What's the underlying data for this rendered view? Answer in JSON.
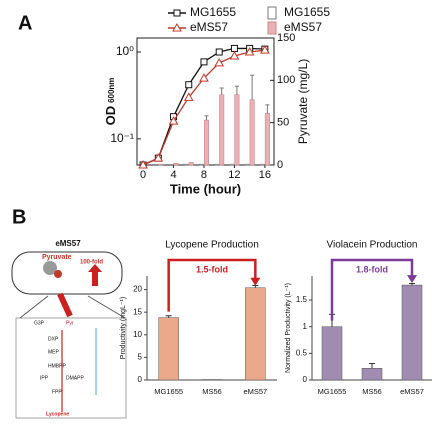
{
  "panel_labels": [
    "A",
    "B"
  ],
  "chart_data": [
    {
      "type": "line",
      "xlabel": "Time (hour)",
      "ylabel": "OD",
      "ylabel_subscript": "600nm",
      "y2label": "Pyruvate (mg/L)",
      "x": [
        0,
        2,
        4,
        6,
        8,
        10,
        12,
        14,
        16
      ],
      "xlim": [
        -0.8,
        17.2
      ],
      "xticks": [
        0,
        4,
        8,
        12,
        16
      ],
      "ylim": [
        0.05,
        1.45
      ],
      "log_y": true,
      "yticks": [
        {
          "value": 0.1,
          "label": "10⁻¹"
        },
        {
          "value": 1,
          "label": "10⁰"
        }
      ],
      "y2lim": [
        0,
        150
      ],
      "y2ticks": [
        0,
        50,
        100,
        150
      ],
      "series": [
        {
          "name": "MG1655",
          "kind": "line",
          "marker": "square",
          "color": "#111111",
          "values": [
            0.05,
            0.06,
            0.18,
            0.42,
            0.77,
            1.0,
            1.1,
            1.1,
            1.08
          ]
        },
        {
          "name": "eMS57",
          "kind": "line",
          "marker": "triangle",
          "color": "#c0392b",
          "values": [
            0.05,
            0.06,
            0.16,
            0.3,
            0.5,
            0.75,
            0.9,
            1.0,
            1.05
          ]
        },
        {
          "name": "MG1655",
          "kind": "bar",
          "axis": "y2",
          "color": "#ffffff",
          "edge": "#777777",
          "values": [
            0,
            0,
            0,
            1,
            1,
            1,
            1,
            1,
            1
          ]
        },
        {
          "name": "eMS57",
          "kind": "bar",
          "axis": "y2",
          "color": "#eab0b4",
          "edge": "#c98890",
          "values": [
            0,
            1,
            2,
            3,
            53,
            83,
            83,
            77,
            61
          ],
          "errors": [
            0,
            0,
            0,
            0,
            5,
            8,
            10,
            29,
            10
          ]
        }
      ]
    },
    {
      "type": "bar",
      "title": "Lycopene Production",
      "ylabel": "Productivity (mgL⁻¹)",
      "annotation": "1.5-fold",
      "annotation_color": "#cc1f1f",
      "categories": [
        "MG1655",
        "MS56",
        "eMS57"
      ],
      "values": [
        13.8,
        0.1,
        20.4
      ],
      "errors": [
        0.4,
        0,
        0.5
      ],
      "color": "#eba98c",
      "ylim": [
        0,
        23
      ],
      "yticks": [
        0,
        5,
        10,
        15,
        20
      ]
    },
    {
      "type": "bar",
      "title": "Violacein Production",
      "ylabel": "Normalized Productivity (L⁻¹)",
      "annotation": "1.8-fold",
      "annotation_color": "#7d3c98",
      "categories": [
        "MG1655",
        "MS56",
        "eMS57"
      ],
      "values": [
        1.0,
        0.22,
        1.78
      ],
      "errors": [
        0.23,
        0.09,
        0.03
      ],
      "color": "#a08cb0",
      "ylim": [
        0,
        1.95
      ],
      "yticks": [
        0,
        0.5,
        1,
        1.5
      ]
    }
  ],
  "diagram": {
    "strain": "eMS57",
    "cell_label": "Pyruvate",
    "fold_label": "100-fold",
    "pathway": [
      "G3P",
      "Pyr",
      "DXP",
      "MEP",
      "HMBPP",
      "IPP",
      "DMAPP",
      "FPP",
      "Lycopene"
    ]
  }
}
